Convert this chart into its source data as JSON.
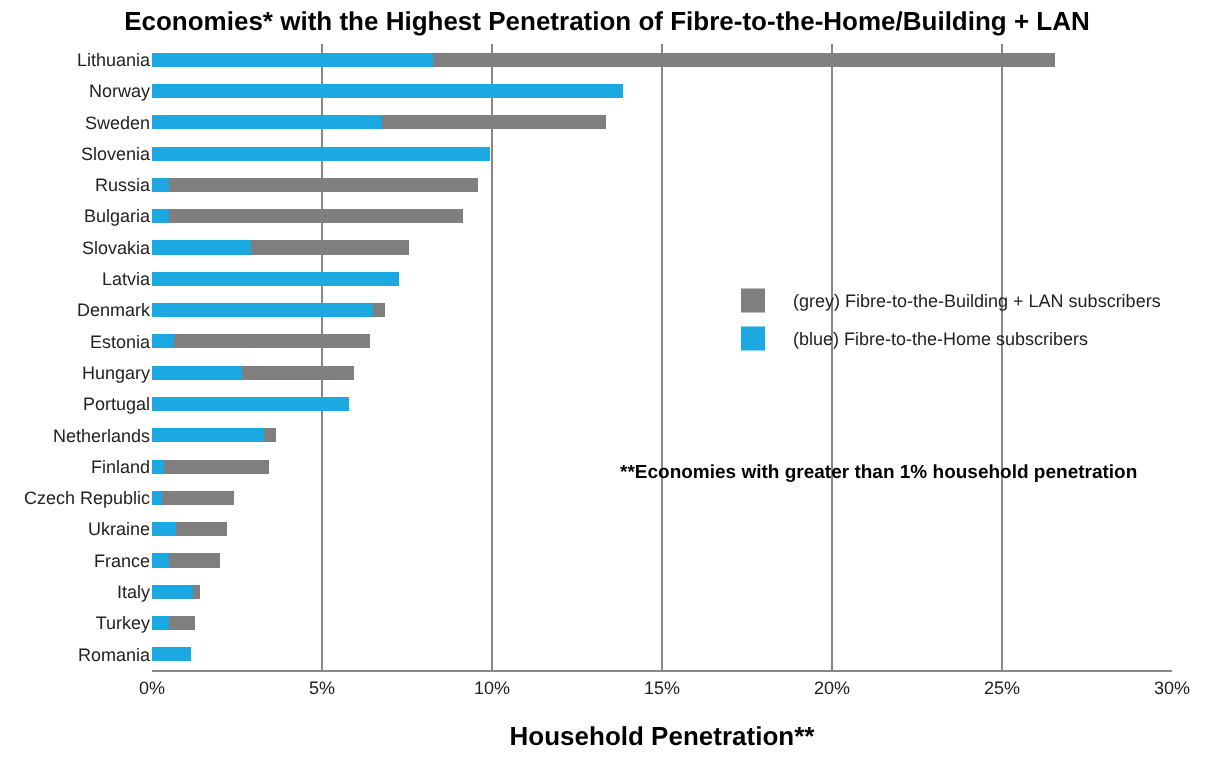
{
  "chart_data": {
    "type": "bar",
    "orientation": "horizontal",
    "stacked": true,
    "title": "Economies* with the Highest Penetration of Fibre-to-the-Home/Building + LAN",
    "xlabel": "Household Penetration**",
    "categories": [
      "Lithuania",
      "Norway",
      "Sweden",
      "Slovenia",
      "Russia",
      "Bulgaria",
      "Slovakia",
      "Latvia",
      "Denmark",
      "Estonia",
      "Hungary",
      "Portugal",
      "Netherlands",
      "Finland",
      "Czech Republic",
      "Ukraine",
      "France",
      "Italy",
      "Turkey",
      "Romania"
    ],
    "series": [
      {
        "name": "(blue) Fibre-to-the-Home subscribers",
        "color": "#1ca8e0",
        "values": [
          8.25,
          13.85,
          6.75,
          9.95,
          0.5,
          0.5,
          2.9,
          7.25,
          6.5,
          0.65,
          2.65,
          5.8,
          3.3,
          0.35,
          0.3,
          0.7,
          0.5,
          1.2,
          0.5,
          1.15
        ]
      },
      {
        "name": "(grey) Fibre-to-the-Building + LAN subscribers",
        "color": "#7f7f7f",
        "values": [
          18.3,
          0,
          6.6,
          0,
          9.1,
          8.65,
          4.65,
          0,
          0.35,
          5.75,
          3.3,
          0,
          0.35,
          3.1,
          2.1,
          1.5,
          1.5,
          0.2,
          0.75,
          0
        ]
      }
    ],
    "xlim": [
      0,
      30
    ],
    "xticks": [
      {
        "value": 0,
        "label": "0%"
      },
      {
        "value": 5,
        "label": "5%"
      },
      {
        "value": 10,
        "label": "10%"
      },
      {
        "value": 15,
        "label": "15%"
      },
      {
        "value": 20,
        "label": "20%"
      },
      {
        "value": 25,
        "label": "25%"
      },
      {
        "value": 30,
        "label": "30%"
      }
    ],
    "grid": "x",
    "legend": "right",
    "annotations": [
      "**Economies with greater than 1% household penetration"
    ]
  }
}
